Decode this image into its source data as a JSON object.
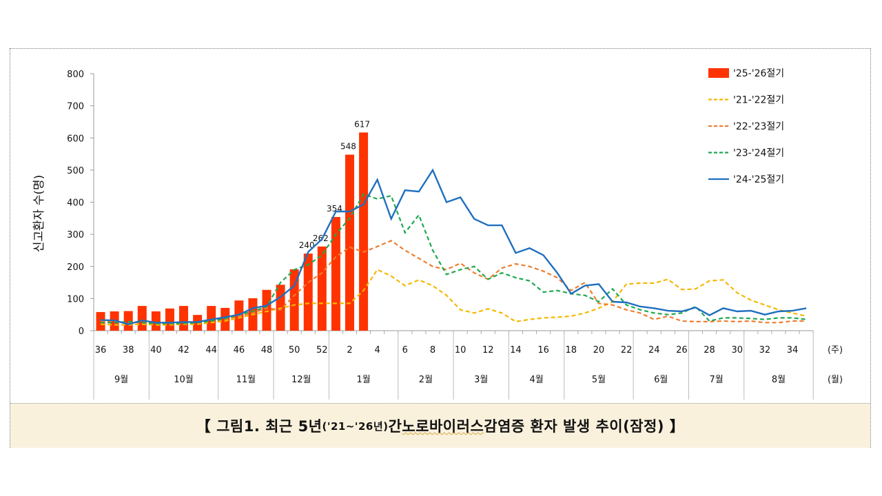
{
  "chart_data": {
    "type": "bar+line",
    "ylabel": "신고환자 수(명)",
    "ylim": [
      0,
      800
    ],
    "y_ticks": [
      "0",
      "100",
      "200",
      "300",
      "400",
      "500",
      "600",
      "700",
      "800"
    ],
    "grid": false,
    "legend_placement": "top-right",
    "weeks": [
      36,
      37,
      38,
      39,
      40,
      41,
      42,
      43,
      44,
      45,
      46,
      47,
      48,
      49,
      50,
      51,
      52,
      1,
      2,
      3,
      4,
      5,
      6,
      7,
      8,
      9,
      10,
      11,
      12,
      13,
      14,
      15,
      16,
      17,
      18,
      19,
      20,
      21,
      22,
      23,
      24,
      25,
      26,
      27,
      28,
      29,
      30,
      31,
      32,
      33,
      34,
      35
    ],
    "x_tick_labels": [
      "36",
      "38",
      "40",
      "42",
      "44",
      "46",
      "48",
      "50",
      "52",
      "2",
      "4",
      "6",
      "8",
      "10",
      "12",
      "14",
      "16",
      "18",
      "20",
      "22",
      "24",
      "26",
      "28",
      "30",
      "32",
      "34"
    ],
    "x_unit_week": "(주)",
    "x_unit_month": "(월)",
    "months": [
      {
        "label": "9월",
        "weeks": 4
      },
      {
        "label": "10월",
        "weeks": 5
      },
      {
        "label": "11월",
        "weeks": 4
      },
      {
        "label": "12월",
        "weeks": 4
      },
      {
        "label": "1월",
        "weeks": 5
      },
      {
        "label": "2월",
        "weeks": 4
      },
      {
        "label": "3월",
        "weeks": 4
      },
      {
        "label": "4월",
        "weeks": 4
      },
      {
        "label": "5월",
        "weeks": 5
      },
      {
        "label": "6월",
        "weeks": 4
      },
      {
        "label": "7월",
        "weeks": 4
      },
      {
        "label": "8월",
        "weeks": 5
      }
    ],
    "bar_series": {
      "name": "'25-'26절기",
      "color": "#ff3300",
      "values": [
        58,
        60,
        61,
        77,
        60,
        69,
        77,
        49,
        77,
        71,
        94,
        101,
        127,
        143,
        191,
        240,
        262,
        354,
        548,
        617
      ],
      "data_labels": {
        "15": "240",
        "16": "262",
        "17": "354",
        "18": "548",
        "19": "617"
      }
    },
    "series": [
      {
        "name": "'21-'22절기",
        "color": "#f5b800",
        "dash": true,
        "values": [
          20,
          18,
          18,
          20,
          18,
          18,
          20,
          20,
          25,
          30,
          40,
          50,
          60,
          70,
          80,
          85,
          85,
          85,
          85,
          125,
          190,
          170,
          140,
          158,
          140,
          110,
          65,
          55,
          68,
          55,
          28,
          35,
          40,
          42,
          45,
          55,
          70,
          90,
          145,
          148,
          148,
          160,
          128,
          130,
          155,
          158,
          118,
          95,
          80,
          65,
          55,
          45
        ]
      },
      {
        "name": "'22-'23절기",
        "color": "#ed7d31",
        "dash": true,
        "values": [
          30,
          28,
          25,
          25,
          22,
          22,
          25,
          25,
          30,
          35,
          45,
          55,
          70,
          65,
          110,
          150,
          180,
          230,
          260,
          245,
          262,
          280,
          250,
          225,
          200,
          190,
          210,
          180,
          160,
          195,
          208,
          200,
          185,
          165,
          125,
          150,
          85,
          80,
          65,
          55,
          35,
          45,
          30,
          28,
          28,
          30,
          28,
          30,
          25,
          25,
          30,
          30
        ]
      },
      {
        "name": "'23-'24절기",
        "color": "#1fa84f",
        "dash": true,
        "values": [
          25,
          25,
          28,
          25,
          22,
          22,
          22,
          25,
          30,
          38,
          50,
          60,
          75,
          150,
          190,
          205,
          235,
          300,
          350,
          425,
          410,
          420,
          305,
          360,
          250,
          175,
          190,
          200,
          160,
          180,
          165,
          155,
          120,
          125,
          115,
          110,
          90,
          130,
          80,
          65,
          55,
          50,
          55,
          75,
          30,
          40,
          40,
          38,
          35,
          40,
          40,
          35
        ]
      },
      {
        "name": "'24-'25절기",
        "color": "#1f6fbf",
        "dash": false,
        "values": [
          33,
          32,
          20,
          32,
          25,
          25,
          27,
          27,
          35,
          42,
          50,
          70,
          78,
          105,
          140,
          245,
          285,
          371,
          371,
          393,
          470,
          348,
          437,
          433,
          500,
          400,
          415,
          348,
          328,
          328,
          242,
          257,
          235,
          180,
          115,
          140,
          145,
          90,
          88,
          75,
          70,
          62,
          60,
          72,
          48,
          70,
          60,
          62,
          50,
          60,
          62,
          70
        ]
      }
    ]
  },
  "caption": {
    "open": "【 그림1. 최근 5년",
    "range": "('21~'26년)",
    "mid": " 간 ",
    "virus": "노로바이러스",
    "rest": " 감염증 환자 발생 추이(잠정) 】"
  }
}
